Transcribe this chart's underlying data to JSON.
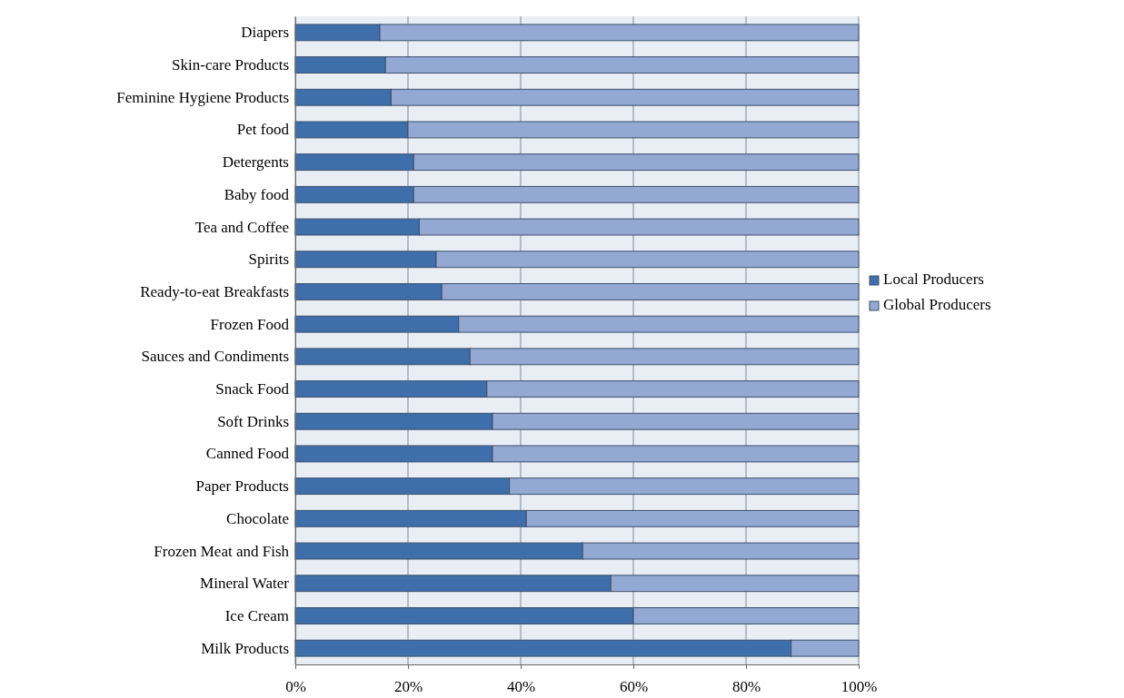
{
  "chart_data": {
    "type": "bar",
    "orientation": "horizontal",
    "stacked": true,
    "categories": [
      "Diapers",
      "Skin-care Products",
      "Feminine Hygiene Products",
      "Pet food",
      "Detergents",
      "Baby food",
      "Tea and Coffee",
      "Spirits",
      "Ready-to-eat Breakfasts",
      "Frozen Food",
      "Sauces and Condiments",
      "Snack Food",
      "Soft Drinks",
      "Canned Food",
      "Paper Products",
      "Chocolate",
      "Frozen Meat and Fish",
      "Mineral Water",
      "Ice Cream",
      "Milk Products"
    ],
    "series": [
      {
        "name": "Local Producers",
        "color": "#3f6faa",
        "values": [
          15,
          16,
          17,
          20,
          21,
          21,
          22,
          25,
          26,
          29,
          31,
          34,
          35,
          35,
          38,
          41,
          51,
          56,
          60,
          88
        ]
      },
      {
        "name": "Global Producers",
        "color": "#93a9d4",
        "values": [
          85,
          84,
          83,
          80,
          79,
          79,
          78,
          75,
          74,
          71,
          69,
          66,
          65,
          65,
          62,
          59,
          49,
          44,
          40,
          12
        ]
      }
    ],
    "xlim": [
      0,
      100
    ],
    "xticks": [
      {
        "value": 0,
        "label": "0%"
      },
      {
        "value": 20,
        "label": "20%"
      },
      {
        "value": 40,
        "label": "40%"
      },
      {
        "value": 60,
        "label": "60%"
      },
      {
        "value": 80,
        "label": "80%"
      },
      {
        "value": 100,
        "label": "100%"
      }
    ],
    "grid": "x",
    "legend": "right"
  }
}
